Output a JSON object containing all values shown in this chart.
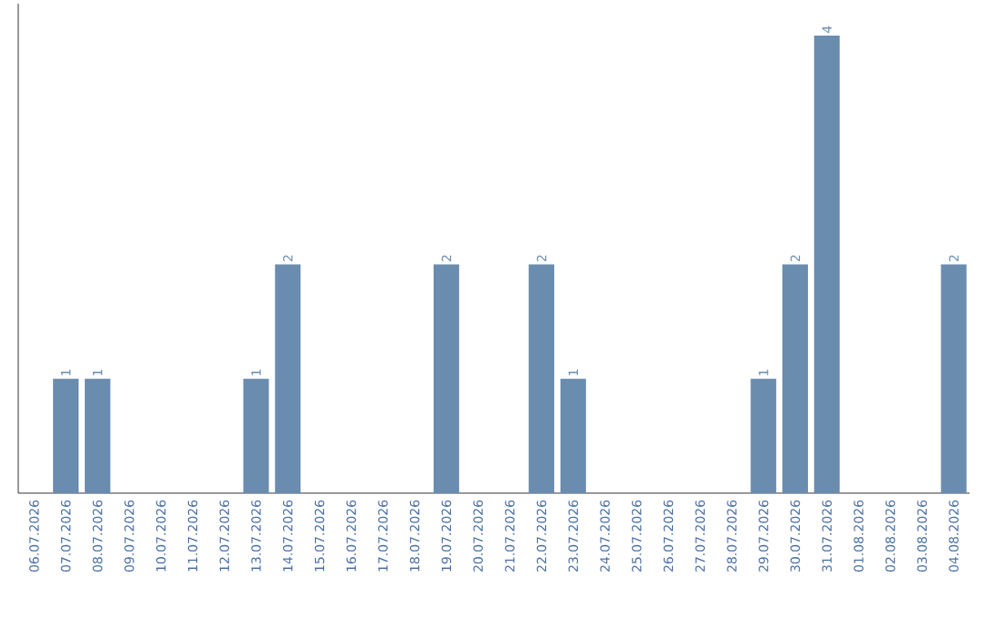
{
  "chart_data": {
    "type": "bar",
    "categories": [
      "06.07.2026",
      "07.07.2026",
      "08.07.2026",
      "09.07.2026",
      "10.07.2026",
      "11.07.2026",
      "12.07.2026",
      "13.07.2026",
      "14.07.2026",
      "15.07.2026",
      "16.07.2026",
      "17.07.2026",
      "18.07.2026",
      "19.07.2026",
      "20.07.2026",
      "21.07.2026",
      "22.07.2026",
      "23.07.2026",
      "24.07.2026",
      "25.07.2026",
      "26.07.2026",
      "27.07.2026",
      "28.07.2026",
      "29.07.2026",
      "30.07.2026",
      "31.07.2026",
      "01.08.2026",
      "02.08.2026",
      "03.08.2026",
      "04.08.2026"
    ],
    "values": [
      0,
      1,
      1,
      0,
      0,
      0,
      0,
      1,
      2,
      0,
      0,
      0,
      0,
      2,
      0,
      0,
      2,
      1,
      0,
      0,
      0,
      0,
      0,
      1,
      2,
      4,
      0,
      0,
      0,
      2
    ],
    "value_labels": [
      null,
      "1",
      "1",
      null,
      null,
      null,
      null,
      "1",
      "2",
      null,
      null,
      null,
      null,
      "2",
      null,
      null,
      "2",
      "1",
      null,
      null,
      null,
      null,
      null,
      "1",
      "2",
      "4",
      null,
      null,
      null,
      "2"
    ],
    "color": "#6a8caf"
  }
}
